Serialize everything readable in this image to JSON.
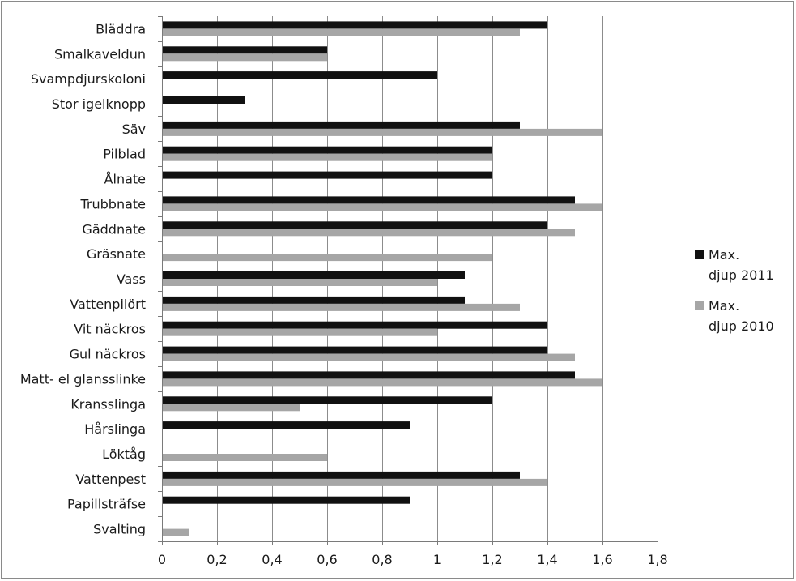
{
  "chart_data": {
    "type": "bar",
    "orientation": "horizontal",
    "categories": [
      "Bläddra",
      "Smalkaveldun",
      "Svampdjurskoloni",
      "Stor igelknopp",
      "Säv",
      "Pilblad",
      "Ålnate",
      "Trubbnate",
      "Gäddnate",
      "Gräsnate",
      "Vass",
      "Vattenpilört",
      "Vit näckros",
      "Gul näckros",
      "Matt- el glansslinke",
      "Kransslinga",
      "Hårslinga",
      "Löktåg",
      "Vattenpest",
      "Papillsträfse",
      "Svalting"
    ],
    "series": [
      {
        "name": "Max. djup 2011",
        "legend_lines": [
          "Max.",
          "djup 2011"
        ],
        "color": "#111111",
        "values": [
          1.4,
          0.6,
          1.0,
          0.3,
          1.3,
          1.2,
          1.2,
          1.5,
          1.4,
          null,
          1.1,
          1.1,
          1.4,
          1.4,
          1.5,
          1.2,
          0.9,
          null,
          1.3,
          0.9,
          null
        ]
      },
      {
        "name": "Max. djup 2010",
        "legend_lines": [
          "Max.",
          "djup 2010"
        ],
        "color": "#a6a6a6",
        "values": [
          1.3,
          0.6,
          null,
          null,
          1.6,
          1.2,
          null,
          1.6,
          1.5,
          1.2,
          1.0,
          1.3,
          1.0,
          1.5,
          1.6,
          0.5,
          null,
          0.6,
          1.4,
          null,
          0.1
        ]
      }
    ],
    "xlim": [
      0,
      1.8
    ],
    "xticks": [
      0,
      0.2,
      0.4,
      0.6,
      0.8,
      1,
      1.2,
      1.4,
      1.6,
      1.8
    ],
    "xtick_labels": [
      "0",
      "0,2",
      "0,4",
      "0,6",
      "0,8",
      "1",
      "1,2",
      "1,4",
      "1,6",
      "1,8"
    ],
    "grid": "vertical",
    "legend_position": "right",
    "title": "",
    "xlabel": "",
    "ylabel": ""
  }
}
